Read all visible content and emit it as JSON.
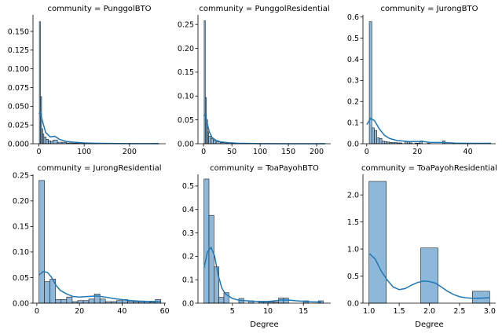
{
  "chart_data": [
    {
      "type": "histogram",
      "title": "community = PunggolBTO",
      "xlabel": "",
      "ylabel": "",
      "xlim": [
        -13,
        280
      ],
      "ylim": [
        0,
        0.172
      ],
      "xticks": [
        "0",
        "100",
        "200"
      ],
      "xtick_values": [
        0,
        100,
        200
      ],
      "yticks": [
        "0.000",
        "0.025",
        "0.050",
        "0.075",
        "0.100",
        "0.125",
        "0.150"
      ],
      "ytick_values": [
        0,
        0.025,
        0.05,
        0.075,
        0.1,
        0.125,
        0.15
      ],
      "bins": [
        {
          "x0": 1,
          "x1": 3.5,
          "y": 0.163
        },
        {
          "x0": 3.5,
          "x1": 6,
          "y": 0.063
        },
        {
          "x0": 6,
          "x1": 8.5,
          "y": 0.02
        },
        {
          "x0": 8.5,
          "x1": 11,
          "y": 0.013
        },
        {
          "x0": 11,
          "x1": 16,
          "y": 0.009
        },
        {
          "x0": 16,
          "x1": 21,
          "y": 0.006
        },
        {
          "x0": 21,
          "x1": 26,
          "y": 0.004
        },
        {
          "x0": 26,
          "x1": 31,
          "y": 0.003
        },
        {
          "x0": 31,
          "x1": 41,
          "y": 0.005
        },
        {
          "x0": 41,
          "x1": 51,
          "y": 0.002
        },
        {
          "x0": 51,
          "x1": 61,
          "y": 0.002
        },
        {
          "x0": 61,
          "x1": 75,
          "y": 0.001
        },
        {
          "x0": 75,
          "x1": 95,
          "y": 0.0008
        },
        {
          "x0": 95,
          "x1": 130,
          "y": 0.0004
        },
        {
          "x0": 250,
          "x1": 262,
          "y": 0.0005
        }
      ],
      "kde": [
        [
          0,
          0.04
        ],
        [
          3,
          0.042
        ],
        [
          8,
          0.03
        ],
        [
          15,
          0.015
        ],
        [
          25,
          0.009
        ],
        [
          35,
          0.01
        ],
        [
          45,
          0.006
        ],
        [
          60,
          0.003
        ],
        [
          80,
          0.002
        ],
        [
          100,
          0.001
        ],
        [
          130,
          0.0005
        ],
        [
          180,
          0.0002
        ],
        [
          220,
          0.0001
        ],
        [
          265,
          0.0001
        ]
      ]
    },
    {
      "type": "histogram",
      "title": "community = PunggolResidential",
      "xlabel": "",
      "ylabel": "",
      "xlim": [
        -10,
        225
      ],
      "ylim": [
        0,
        0.27
      ],
      "xticks": [
        "0",
        "50",
        "100",
        "150",
        "200"
      ],
      "xtick_values": [
        0,
        50,
        100,
        150,
        200
      ],
      "yticks": [
        "0.00",
        "0.05",
        "0.10",
        "0.15",
        "0.20",
        "0.25"
      ],
      "ytick_values": [
        0,
        0.05,
        0.1,
        0.15,
        0.2,
        0.25
      ],
      "bins": [
        {
          "x0": 1,
          "x1": 3,
          "y": 0.258
        },
        {
          "x0": 3,
          "x1": 5,
          "y": 0.097
        },
        {
          "x0": 5,
          "x1": 7,
          "y": 0.05
        },
        {
          "x0": 7,
          "x1": 9,
          "y": 0.025
        },
        {
          "x0": 9,
          "x1": 13,
          "y": 0.016
        },
        {
          "x0": 13,
          "x1": 17,
          "y": 0.011
        },
        {
          "x0": 17,
          "x1": 22,
          "y": 0.007
        },
        {
          "x0": 22,
          "x1": 30,
          "y": 0.004
        },
        {
          "x0": 30,
          "x1": 40,
          "y": 0.002
        },
        {
          "x0": 40,
          "x1": 55,
          "y": 0.0015
        },
        {
          "x0": 55,
          "x1": 80,
          "y": 0.0008
        },
        {
          "x0": 205,
          "x1": 215,
          "y": 0.0005
        }
      ],
      "kde": [
        [
          0,
          0.058
        ],
        [
          3,
          0.062
        ],
        [
          6,
          0.045
        ],
        [
          10,
          0.025
        ],
        [
          15,
          0.013
        ],
        [
          22,
          0.007
        ],
        [
          30,
          0.004
        ],
        [
          45,
          0.002
        ],
        [
          60,
          0.001
        ],
        [
          100,
          0.0003
        ],
        [
          150,
          0.0001
        ],
        [
          215,
          0.0001
        ]
      ]
    },
    {
      "type": "histogram",
      "title": "community = JurongBTO",
      "xlabel": "",
      "ylabel": "",
      "xlim": [
        -1.5,
        51
      ],
      "ylim": [
        0,
        0.61
      ],
      "xticks": [
        "0",
        "20",
        "40"
      ],
      "xtick_values": [
        0,
        20,
        40
      ],
      "yticks": [
        "0.0",
        "0.1",
        "0.2",
        "0.3",
        "0.4",
        "0.5",
        "0.6"
      ],
      "ytick_values": [
        0,
        0.1,
        0.2,
        0.3,
        0.4,
        0.5,
        0.6
      ],
      "bins": [
        {
          "x0": 1,
          "x1": 2,
          "y": 0.578
        },
        {
          "x0": 2,
          "x1": 3,
          "y": 0.075
        },
        {
          "x0": 3,
          "x1": 4,
          "y": 0.063
        },
        {
          "x0": 4,
          "x1": 5,
          "y": 0.028
        },
        {
          "x0": 5,
          "x1": 6,
          "y": 0.025
        },
        {
          "x0": 6,
          "x1": 7,
          "y": 0.012
        },
        {
          "x0": 7,
          "x1": 8,
          "y": 0.01
        },
        {
          "x0": 8,
          "x1": 9,
          "y": 0.008
        },
        {
          "x0": 9,
          "x1": 10,
          "y": 0.006
        },
        {
          "x0": 10,
          "x1": 11,
          "y": 0.005
        },
        {
          "x0": 11,
          "x1": 12,
          "y": 0.005
        },
        {
          "x0": 12,
          "x1": 13,
          "y": 0.004
        },
        {
          "x0": 13,
          "x1": 14,
          "y": 0.004
        },
        {
          "x0": 15,
          "x1": 16,
          "y": 0.01
        },
        {
          "x0": 16,
          "x1": 17,
          "y": 0.009
        },
        {
          "x0": 17,
          "x1": 18,
          "y": 0.004
        },
        {
          "x0": 19,
          "x1": 20,
          "y": 0.003
        },
        {
          "x0": 20,
          "x1": 21,
          "y": 0.003
        },
        {
          "x0": 21,
          "x1": 22,
          "y": 0.013
        },
        {
          "x0": 24,
          "x1": 25,
          "y": 0.002
        },
        {
          "x0": 30,
          "x1": 31,
          "y": 0.013
        },
        {
          "x0": 34,
          "x1": 35,
          "y": 0.002
        },
        {
          "x0": 48,
          "x1": 49,
          "y": 0.003
        }
      ],
      "kde": [
        [
          0,
          0.09
        ],
        [
          1.5,
          0.12
        ],
        [
          3,
          0.11
        ],
        [
          5,
          0.07
        ],
        [
          7,
          0.04
        ],
        [
          9,
          0.025
        ],
        [
          12,
          0.015
        ],
        [
          15,
          0.012
        ],
        [
          17,
          0.01
        ],
        [
          20,
          0.01
        ],
        [
          22,
          0.011
        ],
        [
          25,
          0.006
        ],
        [
          30,
          0.006
        ],
        [
          35,
          0.003
        ],
        [
          40,
          0.002
        ],
        [
          45,
          0.002
        ],
        [
          49,
          0.002
        ]
      ]
    },
    {
      "type": "histogram",
      "title": "community = JurongResidential",
      "xlabel": "",
      "ylabel": "",
      "xlim": [
        -1.8,
        60.5
      ],
      "ylim": [
        0,
        0.252
      ],
      "xticks": [
        "0",
        "20",
        "40",
        "60"
      ],
      "xtick_values": [
        0,
        20,
        40,
        60
      ],
      "yticks": [
        "0.00",
        "0.05",
        "0.10",
        "0.15",
        "0.20",
        "0.25"
      ],
      "ytick_values": [
        0,
        0.05,
        0.1,
        0.15,
        0.2,
        0.25
      ],
      "bins": [
        {
          "x0": 1,
          "x1": 3.6,
          "y": 0.24
        },
        {
          "x0": 3.6,
          "x1": 6.2,
          "y": 0.042
        },
        {
          "x0": 6.2,
          "x1": 8.8,
          "y": 0.047
        },
        {
          "x0": 8.8,
          "x1": 11.4,
          "y": 0.007
        },
        {
          "x0": 11.4,
          "x1": 14,
          "y": 0.007
        },
        {
          "x0": 14,
          "x1": 16.6,
          "y": 0.012
        },
        {
          "x0": 16.6,
          "x1": 19.2,
          "y": 0.003
        },
        {
          "x0": 19.2,
          "x1": 21.8,
          "y": 0.005
        },
        {
          "x0": 21.8,
          "x1": 24.4,
          "y": 0.005
        },
        {
          "x0": 24.4,
          "x1": 27,
          "y": 0.008
        },
        {
          "x0": 27,
          "x1": 29.6,
          "y": 0.018
        },
        {
          "x0": 29.6,
          "x1": 32.2,
          "y": 0.008
        },
        {
          "x0": 32.2,
          "x1": 34.8,
          "y": 0.003
        },
        {
          "x0": 34.8,
          "x1": 37.4,
          "y": 0.003
        },
        {
          "x0": 37.4,
          "x1": 40,
          "y": 0.005
        },
        {
          "x0": 40,
          "x1": 42.6,
          "y": 0.007
        },
        {
          "x0": 42.6,
          "x1": 45.2,
          "y": 0.004
        },
        {
          "x0": 45.2,
          "x1": 47.8,
          "y": 0.003
        },
        {
          "x0": 47.8,
          "x1": 50.4,
          "y": 0.003
        },
        {
          "x0": 50.4,
          "x1": 53,
          "y": 0.003
        },
        {
          "x0": 53,
          "x1": 55.6,
          "y": 0.002
        },
        {
          "x0": 55.6,
          "x1": 58.2,
          "y": 0.007
        }
      ],
      "kde": [
        [
          1,
          0.055
        ],
        [
          3,
          0.062
        ],
        [
          5,
          0.06
        ],
        [
          7,
          0.05
        ],
        [
          9,
          0.035
        ],
        [
          11,
          0.025
        ],
        [
          14,
          0.018
        ],
        [
          17,
          0.013
        ],
        [
          20,
          0.012
        ],
        [
          24,
          0.013
        ],
        [
          28,
          0.014
        ],
        [
          32,
          0.012
        ],
        [
          36,
          0.009
        ],
        [
          40,
          0.007
        ],
        [
          44,
          0.005
        ],
        [
          48,
          0.004
        ],
        [
          52,
          0.0035
        ],
        [
          56,
          0.003
        ],
        [
          58,
          0.003
        ]
      ]
    },
    {
      "type": "histogram",
      "title": "community = ToaPayohBTO",
      "xlabel": "Degree",
      "ylabel": "",
      "xlim": [
        0.15,
        18.85
      ],
      "ylim": [
        0,
        0.55
      ],
      "xticks": [
        "5",
        "10",
        "15"
      ],
      "xtick_values": [
        5,
        10,
        15
      ],
      "yticks": [
        "0.0",
        "0.1",
        "0.2",
        "0.3",
        "0.4",
        "0.5"
      ],
      "ytick_values": [
        0,
        0.1,
        0.2,
        0.3,
        0.4,
        0.5
      ],
      "bins": [
        {
          "x0": 1,
          "x1": 1.7,
          "y": 0.53
        },
        {
          "x0": 1.7,
          "x1": 2.4,
          "y": 0.375
        },
        {
          "x0": 2.4,
          "x1": 3.1,
          "y": 0.155
        },
        {
          "x0": 3.1,
          "x1": 3.8,
          "y": 0.025
        },
        {
          "x0": 3.8,
          "x1": 4.5,
          "y": 0.045
        },
        {
          "x0": 4.5,
          "x1": 5.2,
          "y": 0.0
        },
        {
          "x0": 5.2,
          "x1": 5.9,
          "y": 0.0
        },
        {
          "x0": 5.9,
          "x1": 6.6,
          "y": 0.02
        },
        {
          "x0": 6.6,
          "x1": 7.3,
          "y": 0.0
        },
        {
          "x0": 7.3,
          "x1": 8.0,
          "y": 0.01
        },
        {
          "x0": 8.0,
          "x1": 8.7,
          "y": 0.0
        },
        {
          "x0": 8.7,
          "x1": 9.4,
          "y": 0.005
        },
        {
          "x0": 9.4,
          "x1": 10.1,
          "y": 0.005
        },
        {
          "x0": 10.1,
          "x1": 10.8,
          "y": 0.005
        },
        {
          "x0": 10.8,
          "x1": 11.5,
          "y": 0.005
        },
        {
          "x0": 11.5,
          "x1": 12.2,
          "y": 0.022
        },
        {
          "x0": 12.2,
          "x1": 12.9,
          "y": 0.022
        },
        {
          "x0": 15.0,
          "x1": 15.7,
          "y": 0.01
        },
        {
          "x0": 17.1,
          "x1": 17.8,
          "y": 0.01
        }
      ],
      "kde": [
        [
          1,
          0.15
        ],
        [
          1.5,
          0.22
        ],
        [
          2,
          0.238
        ],
        [
          2.5,
          0.2
        ],
        [
          3,
          0.12
        ],
        [
          3.5,
          0.065
        ],
        [
          4,
          0.04
        ],
        [
          5,
          0.02
        ],
        [
          6,
          0.012
        ],
        [
          7,
          0.01
        ],
        [
          8,
          0.008
        ],
        [
          9,
          0.007
        ],
        [
          10,
          0.007
        ],
        [
          11,
          0.01
        ],
        [
          12,
          0.014
        ],
        [
          13,
          0.013
        ],
        [
          14,
          0.01
        ],
        [
          15,
          0.008
        ],
        [
          16,
          0.006
        ],
        [
          17,
          0.005
        ],
        [
          17.5,
          0.005
        ]
      ]
    },
    {
      "type": "histogram",
      "title": "community = ToaPayohResidential",
      "xlabel": "Degree",
      "ylabel": "",
      "xlim": [
        0.9,
        3.1
      ],
      "ylim": [
        0,
        2.38
      ],
      "xticks": [
        "1.0",
        "1.5",
        "2.0",
        "2.5",
        "3.0"
      ],
      "xtick_values": [
        1.0,
        1.5,
        2.0,
        2.5,
        3.0
      ],
      "yticks": [
        "0.0",
        "0.5",
        "1.0",
        "1.5",
        "2.0"
      ],
      "ytick_values": [
        0,
        0.5,
        1.0,
        1.5,
        2.0
      ],
      "bins": [
        {
          "x0": 1.0,
          "x1": 1.286,
          "y": 2.25
        },
        {
          "x0": 1.857,
          "x1": 2.143,
          "y": 1.02
        },
        {
          "x0": 2.714,
          "x1": 3.0,
          "y": 0.22
        }
      ],
      "kde": [
        [
          1.0,
          0.92
        ],
        [
          1.1,
          0.82
        ],
        [
          1.2,
          0.6
        ],
        [
          1.3,
          0.43
        ],
        [
          1.4,
          0.3
        ],
        [
          1.5,
          0.25
        ],
        [
          1.6,
          0.27
        ],
        [
          1.7,
          0.33
        ],
        [
          1.8,
          0.38
        ],
        [
          1.9,
          0.41
        ],
        [
          2.0,
          0.4
        ],
        [
          2.1,
          0.37
        ],
        [
          2.2,
          0.3
        ],
        [
          2.3,
          0.22
        ],
        [
          2.4,
          0.16
        ],
        [
          2.5,
          0.12
        ],
        [
          2.6,
          0.1
        ],
        [
          2.7,
          0.09
        ],
        [
          2.8,
          0.09
        ],
        [
          2.9,
          0.095
        ],
        [
          3.0,
          0.1
        ]
      ]
    }
  ],
  "colors": {
    "bar_fill": "#8db8da",
    "bar_edge": "#1a1a1a",
    "kde_line": "#1f77b4",
    "axis": "#000000"
  }
}
